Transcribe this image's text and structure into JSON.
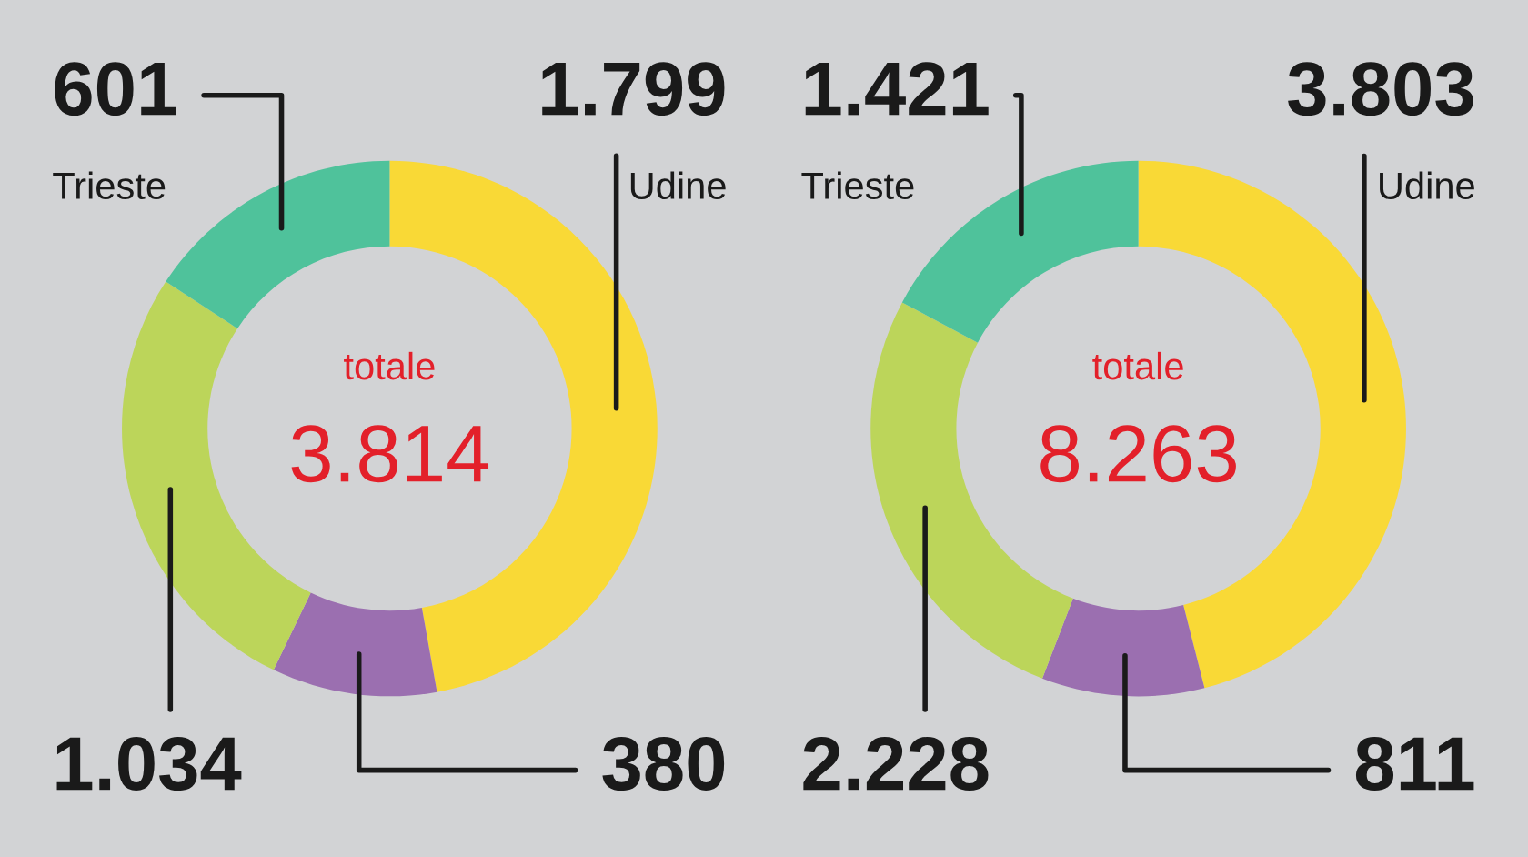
{
  "chart_data": [
    {
      "type": "donut",
      "categories": [
        "Udine",
        null,
        null,
        "Trieste"
      ],
      "values": [
        1799,
        380,
        1034,
        601
      ],
      "colors": [
        "#f9d936",
        "#9b6fb0",
        "#bcd55a",
        "#4fc29b"
      ],
      "value_labels": [
        "1.799",
        "380",
        "1.034",
        "601"
      ],
      "annotations": [
        "totale",
        "3.814"
      ]
    },
    {
      "type": "donut",
      "categories": [
        "Udine",
        null,
        null,
        "Trieste"
      ],
      "values": [
        3803,
        811,
        2228,
        1421
      ],
      "colors": [
        "#f9d936",
        "#9b6fb0",
        "#bcd55a",
        "#4fc29b"
      ],
      "value_labels": [
        "3.803",
        "811",
        "2.228",
        "1.421"
      ],
      "annotations": [
        "totale",
        "8.263"
      ]
    }
  ]
}
